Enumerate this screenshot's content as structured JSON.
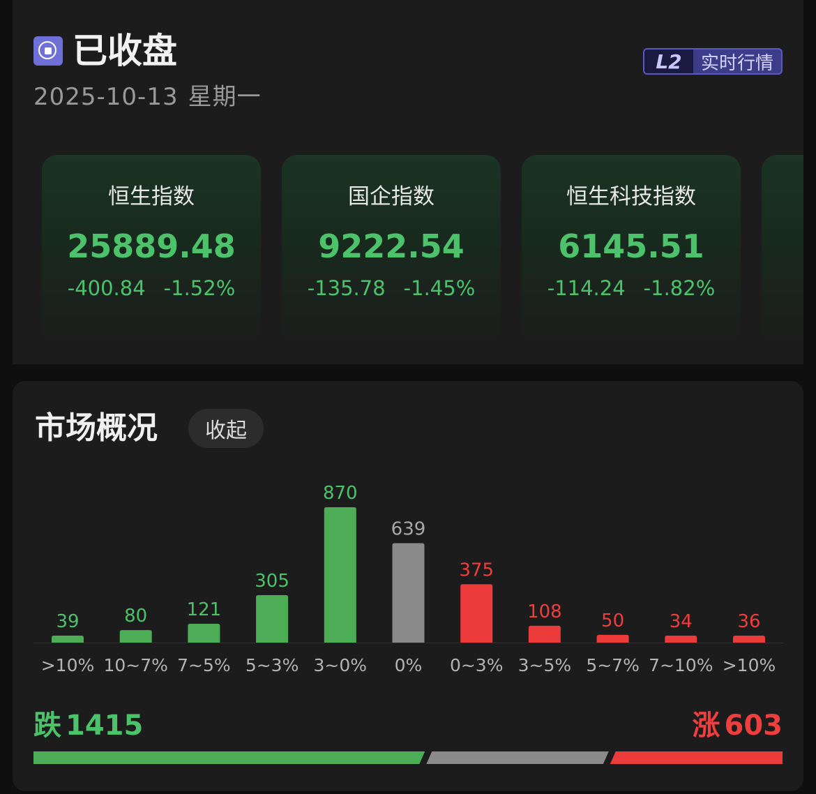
{
  "header": {
    "status": "已收盘",
    "date": "2025-10-13",
    "weekday": "星期一",
    "badge": {
      "mark": "L2",
      "label": "实时行情"
    }
  },
  "indices": [
    {
      "name": "恒生指数",
      "value": "25889.48",
      "change": "-400.84",
      "change_pct": "-1.52%"
    },
    {
      "name": "国企指数",
      "value": "9222.54",
      "change": "-135.78",
      "change_pct": "-1.45%"
    },
    {
      "name": "恒生科技指数",
      "value": "6145.51",
      "change": "-114.24",
      "change_pct": "-1.82%"
    }
  ],
  "market": {
    "title": "市场概况",
    "collapse_label": "收起",
    "down_label": "跌",
    "down_count": "1415",
    "up_label": "涨",
    "up_count": "603"
  },
  "colors": {
    "down": "#4cad56",
    "flat": "#8a8a8a",
    "up": "#ec3b3b",
    "down_text": "#4cc36a",
    "up_text": "#ee3e3e",
    "flat_text": "#a8a8a8"
  },
  "chart_data": {
    "type": "bar",
    "categories": [
      ">10%",
      "10~7%",
      "7~5%",
      "5~3%",
      "3~0%",
      "0%",
      "0~3%",
      "3~5%",
      "5~7%",
      "7~10%",
      ">10%"
    ],
    "values": [
      39,
      80,
      121,
      305,
      870,
      639,
      375,
      108,
      50,
      34,
      36
    ],
    "groups": [
      "down",
      "down",
      "down",
      "down",
      "down",
      "flat",
      "up",
      "up",
      "up",
      "up",
      "up"
    ],
    "ylim": [
      0,
      870
    ]
  },
  "breadth": {
    "down": 1415,
    "flat": 639,
    "up": 603
  }
}
